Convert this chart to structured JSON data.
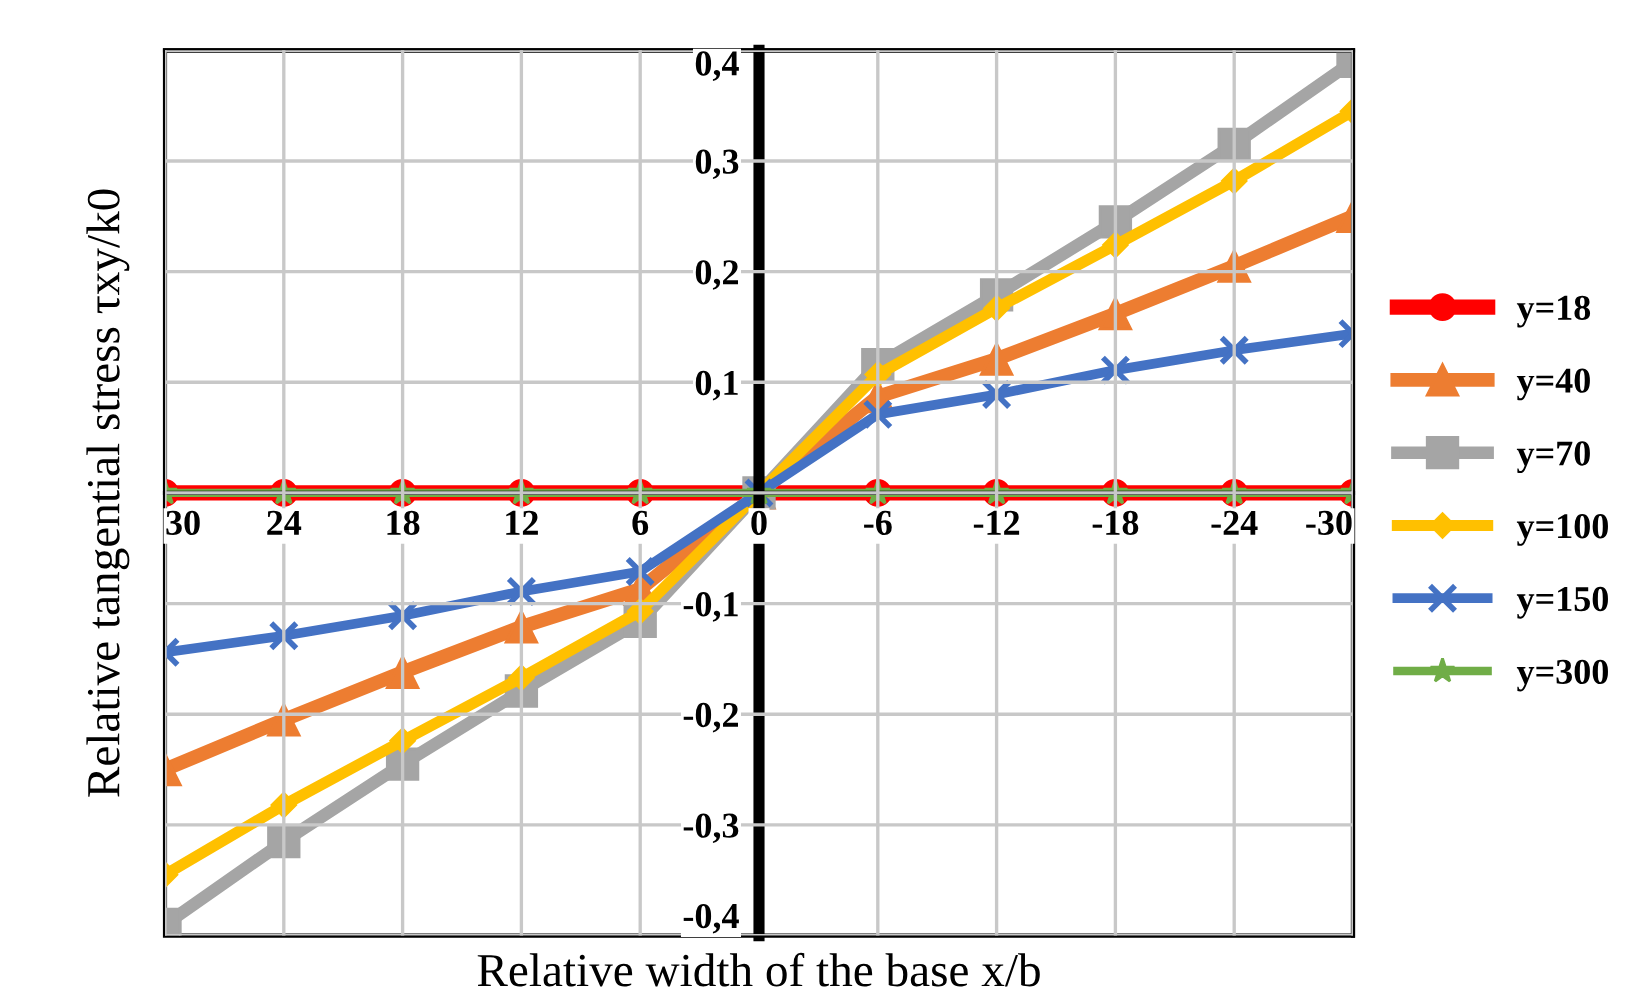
{
  "chart_data": {
    "type": "line",
    "xlabel": "Relative width of the base x/b",
    "ylabel": "Relative tangential stress τxy/k0",
    "x": [
      30,
      24,
      18,
      12,
      6,
      0,
      -6,
      -12,
      -18,
      -24,
      -30
    ],
    "xlim": [
      30,
      -30
    ],
    "xticks": [
      30,
      24,
      18,
      12,
      6,
      0,
      -6,
      -12,
      -18,
      -24,
      -30
    ],
    "ylim": [
      -0.4,
      0.4
    ],
    "yticks": [
      {
        "value": -0.4,
        "label": "-0,4"
      },
      {
        "value": -0.3,
        "label": "-0,3"
      },
      {
        "value": -0.2,
        "label": "-0,2"
      },
      {
        "value": -0.1,
        "label": "-0,1"
      },
      {
        "value": 0,
        "label": null
      },
      {
        "value": 0.1,
        "label": "0,1"
      },
      {
        "value": 0.2,
        "label": "0,2"
      },
      {
        "value": 0.3,
        "label": "0,3"
      },
      {
        "value": 0.4,
        "label": "0,4"
      }
    ],
    "grid": true,
    "legend": "right",
    "line_style": "solid",
    "series": [
      {
        "name": "y=18",
        "color": "#ff0000",
        "marker": "circle",
        "values": [
          0,
          0,
          0,
          0,
          0,
          0,
          0,
          0,
          0,
          0,
          0
        ]
      },
      {
        "name": "y=40",
        "color": "#ed7d31",
        "marker": "triangle",
        "values": [
          -0.25,
          -0.205,
          -0.162,
          -0.121,
          -0.087,
          0,
          0.087,
          0.121,
          0.162,
          0.205,
          0.25
        ]
      },
      {
        "name": "y=70",
        "color": "#a5a5a5",
        "marker": "square",
        "values": [
          -0.39,
          -0.315,
          -0.245,
          -0.179,
          -0.116,
          0,
          0.116,
          0.179,
          0.245,
          0.315,
          0.39
        ]
      },
      {
        "name": "y=100",
        "color": "#ffc000",
        "marker": "diamond",
        "values": [
          -0.345,
          -0.282,
          -0.224,
          -0.167,
          -0.107,
          0,
          0.107,
          0.167,
          0.224,
          0.282,
          0.345
        ]
      },
      {
        "name": "y=150",
        "color": "#4472c4",
        "marker": "cross",
        "values": [
          -0.144,
          -0.129,
          -0.111,
          -0.089,
          -0.071,
          0,
          0.071,
          0.089,
          0.111,
          0.129,
          0.144
        ]
      },
      {
        "name": "y=300",
        "color": "#70ad47",
        "marker": "star",
        "values": [
          0,
          0,
          0,
          0,
          0,
          0,
          0,
          0,
          0,
          0,
          0
        ]
      }
    ]
  }
}
